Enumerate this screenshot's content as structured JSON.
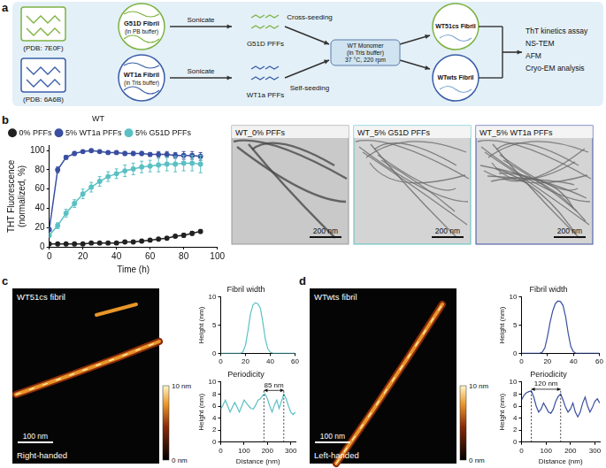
{
  "panel_labels": [
    "a",
    "b",
    "c",
    "d"
  ],
  "schematic": {
    "rows": [
      {
        "pdb": "(PDB: 7E0F)",
        "fibril": [
          "G51D Fibril",
          "(in PB buffer)"
        ],
        "step": "Sonicate",
        "pffs": "G51D PFFs",
        "seeding": "Cross-seeding",
        "product": "WT51cs Fibril",
        "color": "#7cb342"
      },
      {
        "pdb": "(PDB: 6A6B)",
        "fibril": [
          "WT1a Fibril",
          "(in Tris buffer)"
        ],
        "step": "Sonicate",
        "pffs": "WT1a PFFs",
        "seeding": "Self-seeding",
        "product": "WTwts Fibril",
        "color": "#3a5fa8"
      }
    ],
    "tube": [
      "WT Monomer",
      "(in Tris buffer)",
      "37 °C, 220 rpm"
    ],
    "analyses": [
      "ThT kinetics assay",
      "NS-TEM",
      "AFM",
      "Cryo-EM analysis"
    ]
  },
  "tem_images": [
    {
      "title": "WT_0% PFFs",
      "scale_bar": "200 nm"
    },
    {
      "title": "WT_5% G51D PFFs",
      "scale_bar": "200 nm"
    },
    {
      "title": "WT_5% WT1a PFFs",
      "scale_bar": "200 nm"
    }
  ],
  "afm_images": [
    {
      "title": "WT51cs fibril",
      "handedness": "Right-handed",
      "scale_bar": "100 nm",
      "colorbar": {
        "range": [
          0,
          10
        ],
        "ticks": [
          {
            "value": 10,
            "label": "10 nm"
          },
          {
            "value": 0,
            "label": "0 nm"
          }
        ]
      }
    },
    {
      "title": "WTwts fibril",
      "handedness": "Left-handed",
      "scale_bar": "100 nm",
      "colorbar": {
        "range": [
          0,
          10
        ],
        "ticks": [
          {
            "value": 10,
            "label": "10 nm"
          },
          {
            "value": 0,
            "label": "0 nm"
          }
        ]
      }
    }
  ],
  "chart_data": [
    {
      "type": "line",
      "ylabel": [
        "THT Fluorescence",
        "(normalized, %)"
      ],
      "xlabel": "Time (h)",
      "x": [
        0,
        5,
        10,
        15,
        20,
        25,
        30,
        35,
        40,
        45,
        50,
        55,
        60,
        65,
        70,
        75,
        80,
        85,
        90
      ],
      "series": [
        {
          "name": "0% PFFs",
          "color": "#222222",
          "marker": "circle",
          "values": [
            3,
            3,
            3,
            3,
            3,
            4,
            4,
            4,
            4,
            5,
            5,
            6,
            7,
            8,
            9,
            11,
            12,
            14,
            16
          ],
          "errors": [
            1,
            1,
            1,
            1,
            1,
            1,
            1,
            1,
            1,
            1,
            1,
            1,
            1,
            1,
            1,
            1,
            2,
            2,
            2
          ]
        },
        {
          "name": "5% WT1a PFFs",
          "color": "#3a4fa0",
          "marker": "circle",
          "values": [
            18,
            80,
            93,
            97,
            99,
            100,
            99,
            98,
            98,
            97,
            97,
            97,
            96,
            96,
            96,
            95,
            95,
            95,
            94
          ],
          "errors": [
            2,
            3,
            2,
            2,
            1,
            1,
            1,
            1,
            1,
            2,
            2,
            2,
            2,
            3,
            3,
            3,
            4,
            4,
            4
          ]
        },
        {
          "name": "5% G51D PFFs",
          "color": "#5bc0c4",
          "marker": "circle",
          "values": [
            12,
            22,
            35,
            45,
            55,
            62,
            68,
            73,
            76,
            79,
            81,
            83,
            84,
            85,
            86,
            86,
            87,
            87,
            86
          ],
          "errors": [
            2,
            3,
            4,
            4,
            5,
            5,
            5,
            5,
            5,
            6,
            6,
            6,
            6,
            7,
            7,
            8,
            8,
            8,
            9
          ]
        }
      ],
      "legend": "top-left",
      "legend_title": "WT",
      "xlim": [
        0,
        100
      ],
      "xticks": [
        0,
        20,
        40,
        60,
        80,
        100
      ],
      "ylim": [
        0,
        105
      ],
      "yticks": [
        0,
        20,
        40,
        60,
        80,
        100
      ],
      "grid": false
    },
    {
      "type": "line",
      "title": "Fibril width",
      "ylabel": "Height (nm)",
      "x": [
        0,
        2,
        4,
        6,
        8,
        10,
        12,
        14,
        16,
        18,
        20,
        22,
        24,
        26,
        28,
        30,
        32,
        34,
        36,
        38,
        40,
        42,
        44,
        46,
        48,
        50,
        52,
        54,
        56,
        58,
        60
      ],
      "values": [
        0,
        0,
        0,
        0,
        0,
        0,
        0,
        0,
        0,
        0.3,
        1.5,
        4,
        7,
        8.6,
        9,
        8.8,
        8,
        5.5,
        2.5,
        0.8,
        0.2,
        0,
        0,
        0,
        0,
        0,
        0,
        0,
        0,
        0,
        0
      ],
      "color": "#5bc0c4",
      "marker": "none",
      "xlim": [
        0,
        60
      ],
      "xticks": [
        0,
        20,
        40,
        60
      ],
      "ylim": [
        0,
        10
      ],
      "yticks": [
        0,
        5,
        10
      ],
      "grid": false
    },
    {
      "type": "line",
      "title": "Periodicity",
      "ylabel": "Height (nm)",
      "xlabel": "Distance (nm)",
      "x": [
        0,
        10,
        20,
        30,
        40,
        50,
        60,
        70,
        80,
        90,
        100,
        110,
        120,
        130,
        140,
        150,
        160,
        170,
        180,
        190,
        200,
        210,
        220,
        230,
        240,
        250,
        260,
        270,
        280,
        290,
        300,
        310,
        320
      ],
      "values": [
        5.5,
        6.2,
        7.0,
        6.0,
        5.0,
        5.8,
        6.6,
        5.8,
        5.0,
        6.0,
        7.0,
        6.5,
        6.0,
        5.6,
        5.5,
        6.2,
        7.0,
        7.2,
        7.8,
        8.0,
        7.2,
        6.0,
        5.0,
        6.2,
        7.0,
        5.6,
        6.8,
        8.0,
        7.2,
        6.0,
        5.0,
        4.6,
        5.0
      ],
      "color": "#5bc0c4",
      "marker": "none",
      "annotations": [
        {
          "text": "85 nm",
          "x": [
            185,
            270
          ],
          "y": 8.6
        }
      ],
      "xlim": [
        0,
        320
      ],
      "xticks": [
        0,
        100,
        200,
        300
      ],
      "ylim": [
        0,
        10
      ],
      "yticks": [
        0,
        2,
        4,
        6,
        8,
        10
      ],
      "grid": false
    },
    {
      "type": "line",
      "title": "Fibril width",
      "ylabel": "Height (nm)",
      "x": [
        0,
        2,
        4,
        6,
        8,
        10,
        12,
        14,
        16,
        18,
        20,
        22,
        24,
        26,
        28,
        30,
        32,
        34,
        36,
        38,
        40,
        42,
        44,
        46,
        48,
        50,
        52,
        54,
        56,
        58,
        60
      ],
      "values": [
        0,
        0,
        0,
        0,
        0,
        0,
        0,
        0,
        0.2,
        1,
        3,
        5.5,
        7.5,
        8.8,
        9.3,
        9.2,
        8.5,
        6.5,
        3.5,
        1.2,
        0.3,
        0,
        0,
        0,
        0,
        0,
        0,
        0,
        0,
        0,
        0
      ],
      "color": "#3a4fa0",
      "marker": "none",
      "xlim": [
        0,
        60
      ],
      "xticks": [
        0,
        20,
        40,
        60
      ],
      "ylim": [
        0,
        10
      ],
      "yticks": [
        0,
        5,
        10
      ],
      "grid": false
    },
    {
      "type": "line",
      "title": "Periodicity",
      "ylabel": "Height (nm)",
      "xlabel": "Distance (nm)",
      "x": [
        0,
        10,
        20,
        30,
        40,
        50,
        60,
        70,
        80,
        90,
        100,
        110,
        120,
        130,
        140,
        150,
        160,
        170,
        180,
        190,
        200,
        210,
        220,
        230,
        240,
        250,
        260,
        270,
        280,
        290,
        300,
        310,
        320
      ],
      "values": [
        7.0,
        7.8,
        8.2,
        8.4,
        8.5,
        7.5,
        6.0,
        5.0,
        5.5,
        6.5,
        5.8,
        5.0,
        4.8,
        5.5,
        6.8,
        7.6,
        8.0,
        7.0,
        5.8,
        5.0,
        5.5,
        6.5,
        5.0,
        4.2,
        5.0,
        6.5,
        7.5,
        6.0,
        5.0,
        5.8,
        6.8,
        7.2,
        6.5
      ],
      "color": "#3a4fa0",
      "marker": "none",
      "annotations": [
        {
          "text": "120 nm",
          "x": [
            40,
            160
          ],
          "y": 8.8
        }
      ],
      "xlim": [
        0,
        320
      ],
      "xticks": [
        0,
        100,
        200,
        300
      ],
      "ylim": [
        0,
        10
      ],
      "yticks": [
        0,
        2,
        4,
        6,
        8,
        10
      ],
      "grid": false
    }
  ]
}
